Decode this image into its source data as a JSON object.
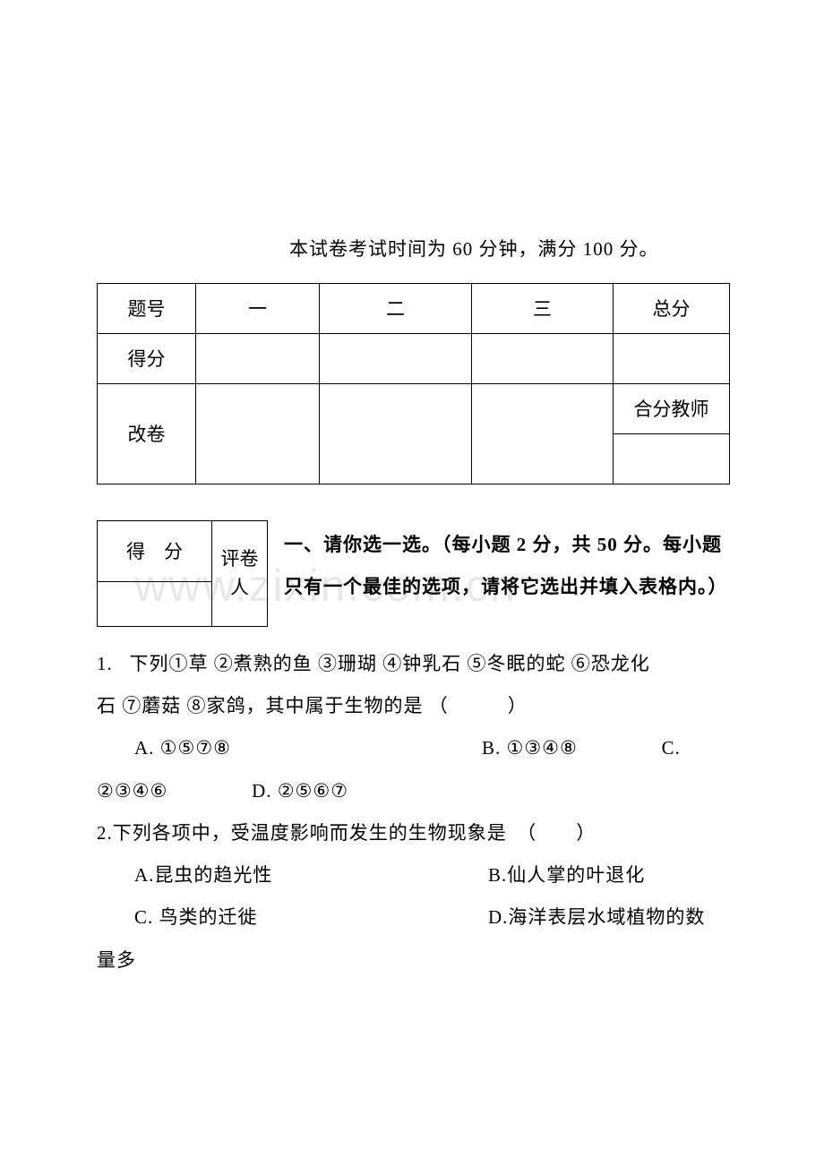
{
  "watermark": "www.zixin.com.cn",
  "exam_info": "本试卷考试时间为 60 分钟，满分 100 分。",
  "score_table": {
    "headers": [
      "题号",
      "一",
      "二",
      "三",
      "总分"
    ],
    "row2_label": "得分",
    "row34_label": "改卷",
    "merged_label": "合分教师"
  },
  "mini_table": {
    "c0": "得　分",
    "c1_line1": "评卷",
    "c1_line2": "人"
  },
  "section1_title": "一、请你选一选。（每小题 2 分，共 50 分。每小题只有一个最佳的选项，请将它选出并填入表格内。）",
  "q1": {
    "num": "1.",
    "stem_a": "下列①草 ②煮熟的鱼 ③珊瑚 ④钟乳石 ⑤冬眠的蛇 ⑥恐龙化",
    "stem_b": "石 ⑦蘑菇 ⑧家鸽，其中属于生物的是 （　　　）",
    "optA": "A. ①⑤⑦⑧",
    "optB": "B. ①③④⑧",
    "optC": "C.",
    "line3_left": "②③④⑥",
    "optD": "D. ②⑤⑥⑦"
  },
  "q2": {
    "stem": "2.下列各项中，受温度影响而发生的生物现象是　（　　）",
    "optA": "A.昆虫的趋光性",
    "optB": "B.仙人掌的叶退化",
    "optC": "C. 鸟类的迁徙",
    "optD": "D.海洋表层水域植物的数",
    "tail": "量多"
  },
  "colors": {
    "text": "#000000",
    "watermark": "#e8e8e8",
    "border": "#000000",
    "background": "#ffffff"
  },
  "typography": {
    "body_fontsize_pt": 16,
    "watermark_fontsize_pt": 38,
    "line_height": 2.25
  }
}
